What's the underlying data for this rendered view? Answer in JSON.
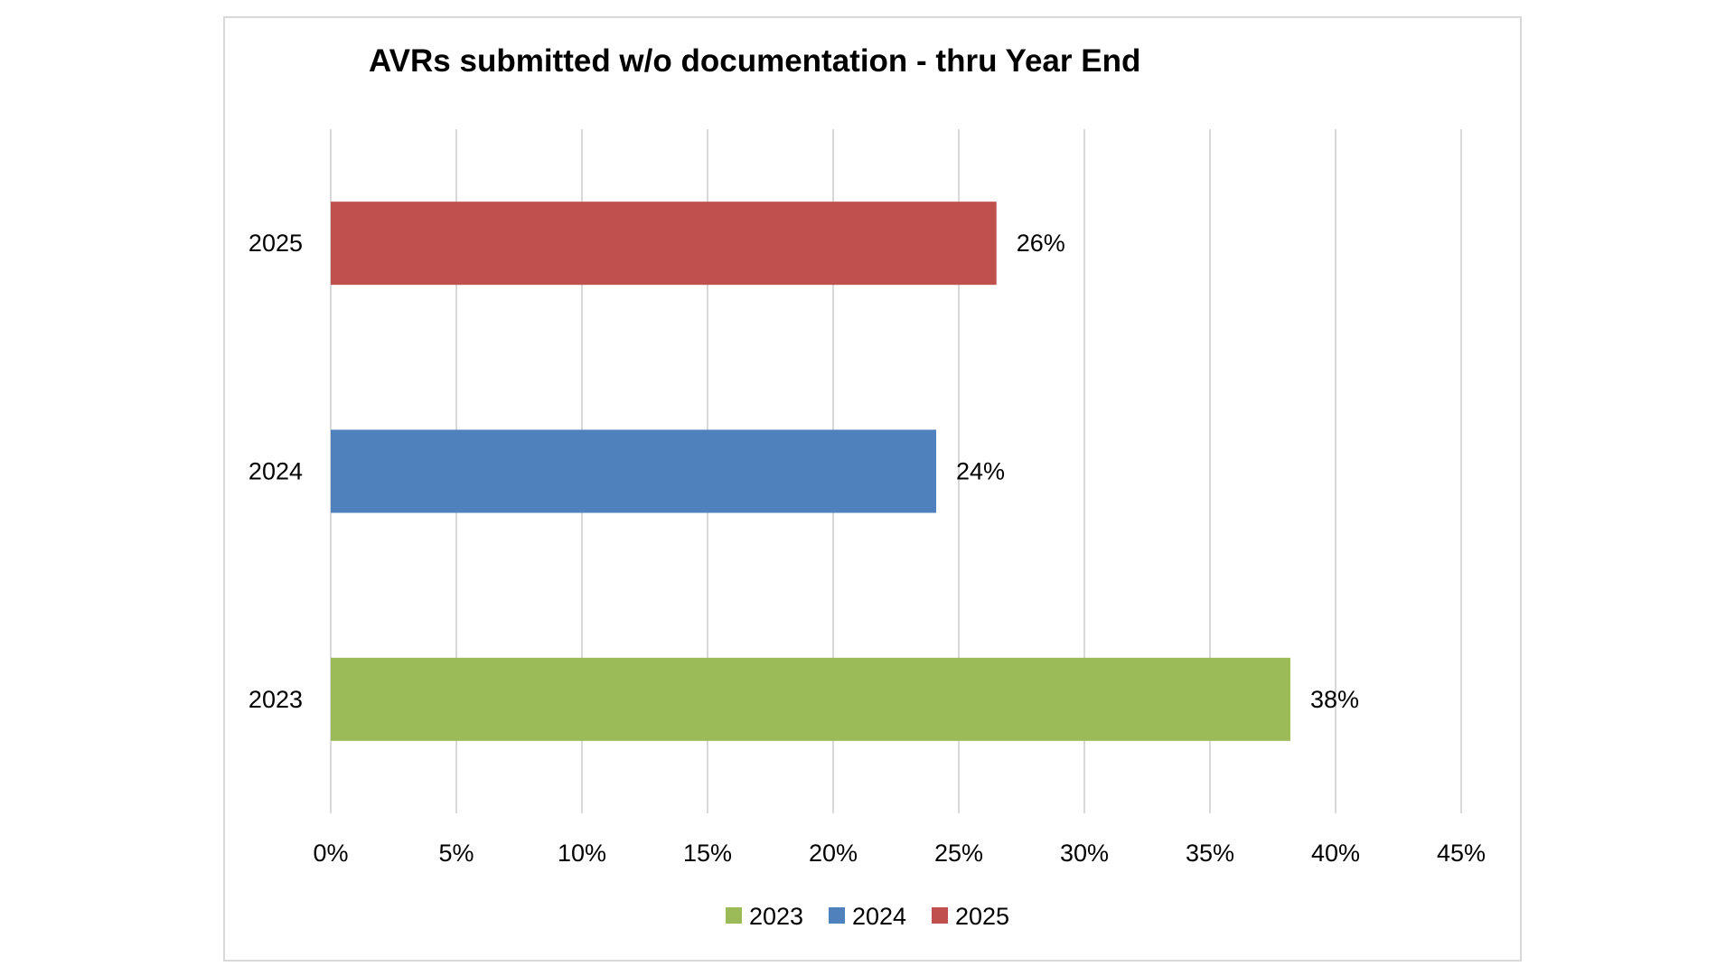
{
  "chart_data": {
    "type": "bar",
    "orientation": "horizontal",
    "title": "AVRs submitted w/o documentation - thru Year End",
    "categories": [
      "2025",
      "2024",
      "2023"
    ],
    "values": [
      26.5,
      24.1,
      38.2
    ],
    "value_labels": [
      "26%",
      "24%",
      "38%"
    ],
    "colors": [
      "#C0504D",
      "#4F81BD",
      "#9BBB59"
    ],
    "xlim": [
      0,
      45
    ],
    "x_ticks": [
      0,
      5,
      10,
      15,
      20,
      25,
      30,
      35,
      40,
      45
    ],
    "x_tick_labels": [
      "0%",
      "5%",
      "10%",
      "15%",
      "20%",
      "25%",
      "30%",
      "35%",
      "40%",
      "45%"
    ],
    "xlabel": "",
    "ylabel": "",
    "grid": true,
    "legend_position": "bottom",
    "legend": [
      {
        "name": "2023",
        "color": "#9BBB59"
      },
      {
        "name": "2024",
        "color": "#4F81BD"
      },
      {
        "name": "2025",
        "color": "#C0504D"
      }
    ]
  }
}
